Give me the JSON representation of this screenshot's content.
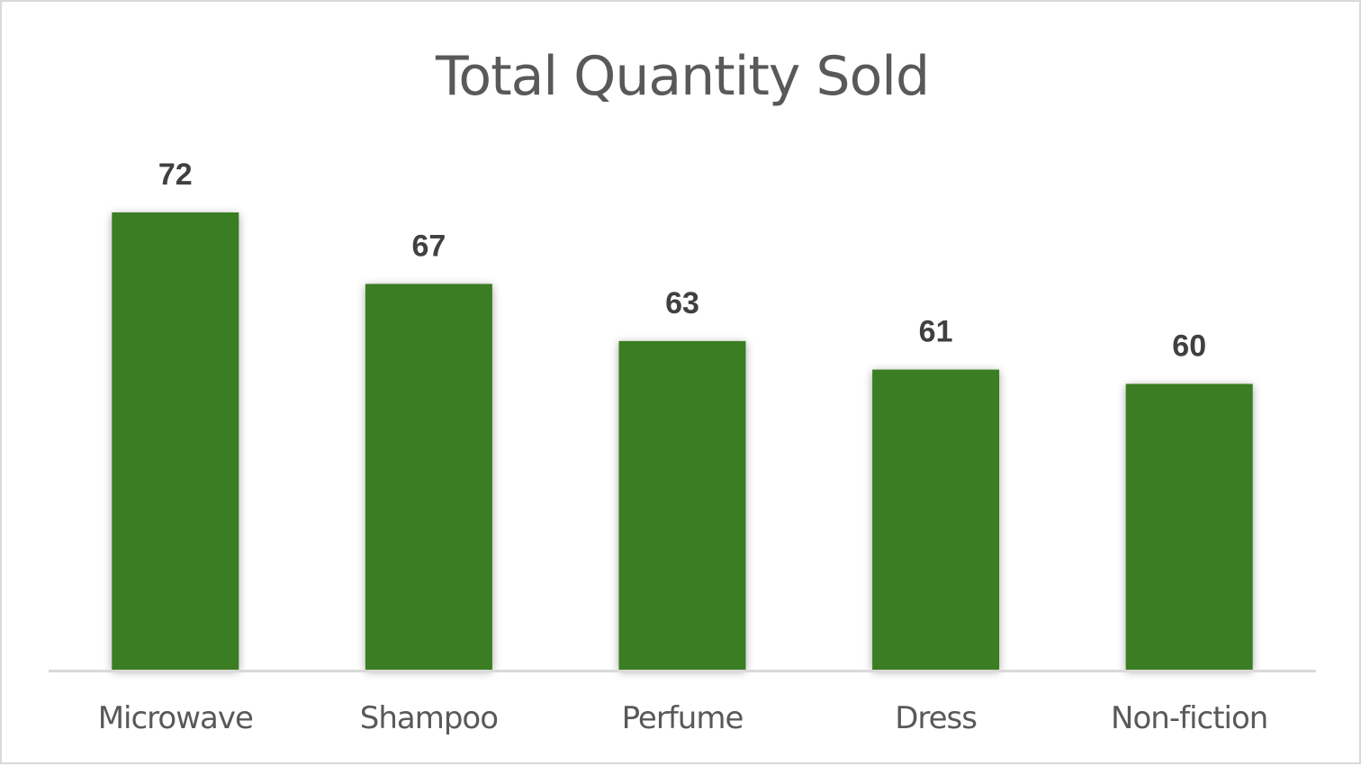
{
  "chart_data": {
    "type": "bar",
    "title": "Total Quantity Sold",
    "xlabel": "",
    "ylabel": "",
    "categories": [
      "Microwave",
      "Shampoo",
      "Perfume",
      "Dress",
      "Non-fiction"
    ],
    "values": [
      72,
      67,
      63,
      61,
      60
    ],
    "data_labels": true,
    "grid": false,
    "legend": "none",
    "colors": {
      "bar": "#3b7d23",
      "axis": "#d9d9d9"
    }
  }
}
